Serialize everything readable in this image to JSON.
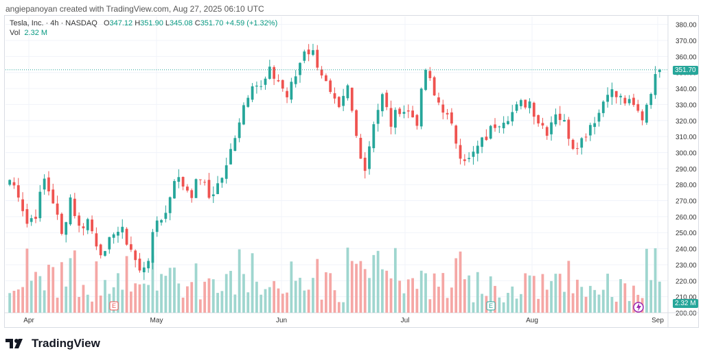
{
  "caption": "angiepanoyan created with TradingView.com, Aug 27, 2025 06:10 UTC",
  "legend": {
    "symbol": "Tesla, Inc. · 4h · NASDAQ",
    "open_label": "O",
    "open": "347.12",
    "high_label": "H",
    "high": "351.90",
    "low_label": "L",
    "low": "345.08",
    "close_label": "C",
    "close": "351.70",
    "change": "+4.59 (+1.32%)",
    "vol_label": "Vol",
    "vol": "2.32 M"
  },
  "footer": {
    "brand": "TradingView"
  },
  "colors": {
    "up": "#26a69a",
    "down": "#ef5350",
    "vol_up": "#9fd6cf",
    "vol_down": "#f5a7a5"
  },
  "chart_data": {
    "type": "candlestick",
    "y_axis": {
      "range": [
        200,
        385
      ],
      "ticks": [
        200,
        210,
        220,
        230,
        240,
        250,
        260,
        270,
        280,
        290,
        300,
        310,
        320,
        330,
        340,
        350,
        360,
        370,
        380
      ]
    },
    "x_axis": {
      "labels": [
        "Apr",
        "May",
        "Jun",
        "Jul",
        "Aug",
        "Sep"
      ]
    },
    "last_price": "351.70",
    "last_volume": "2.32 M",
    "earnings_markers": [
      "E",
      "E"
    ],
    "price_path": [
      [
        0,
        283
      ],
      [
        2,
        275
      ],
      [
        4,
        256
      ],
      [
        6,
        262
      ],
      [
        8,
        283
      ],
      [
        10,
        270
      ],
      [
        12,
        248
      ],
      [
        14,
        272
      ],
      [
        16,
        253
      ],
      [
        18,
        258
      ],
      [
        20,
        244
      ],
      [
        22,
        235
      ],
      [
        24,
        252
      ],
      [
        26,
        250
      ],
      [
        28,
        240
      ],
      [
        30,
        225
      ],
      [
        32,
        235
      ],
      [
        34,
        258
      ],
      [
        36,
        262
      ],
      [
        38,
        285
      ],
      [
        40,
        280
      ],
      [
        42,
        275
      ],
      [
        44,
        285
      ],
      [
        46,
        272
      ],
      [
        48,
        280
      ],
      [
        50,
        290
      ],
      [
        52,
        312
      ],
      [
        54,
        330
      ],
      [
        56,
        345
      ],
      [
        58,
        340
      ],
      [
        60,
        350
      ],
      [
        62,
        345
      ],
      [
        64,
        335
      ],
      [
        66,
        348
      ],
      [
        68,
        365
      ],
      [
        70,
        362
      ],
      [
        72,
        350
      ],
      [
        74,
        335
      ],
      [
        76,
        325
      ],
      [
        78,
        340
      ],
      [
        80,
        310
      ],
      [
        82,
        290
      ],
      [
        84,
        320
      ],
      [
        86,
        335
      ],
      [
        88,
        318
      ],
      [
        90,
        328
      ],
      [
        92,
        325
      ],
      [
        94,
        320
      ],
      [
        96,
        352
      ],
      [
        98,
        335
      ],
      [
        100,
        328
      ],
      [
        102,
        315
      ],
      [
        104,
        300
      ],
      [
        106,
        295
      ],
      [
        108,
        303
      ],
      [
        110,
        310
      ],
      [
        112,
        318
      ],
      [
        114,
        322
      ],
      [
        116,
        325
      ],
      [
        118,
        330
      ],
      [
        120,
        332
      ],
      [
        122,
        320
      ],
      [
        124,
        314
      ],
      [
        126,
        326
      ],
      [
        128,
        318
      ],
      [
        130,
        305
      ],
      [
        132,
        308
      ],
      [
        134,
        318
      ],
      [
        136,
        325
      ],
      [
        138,
        340
      ],
      [
        140,
        335
      ],
      [
        142,
        332
      ],
      [
        144,
        328
      ],
      [
        146,
        322
      ],
      [
        148,
        340
      ],
      [
        150,
        352
      ]
    ]
  }
}
